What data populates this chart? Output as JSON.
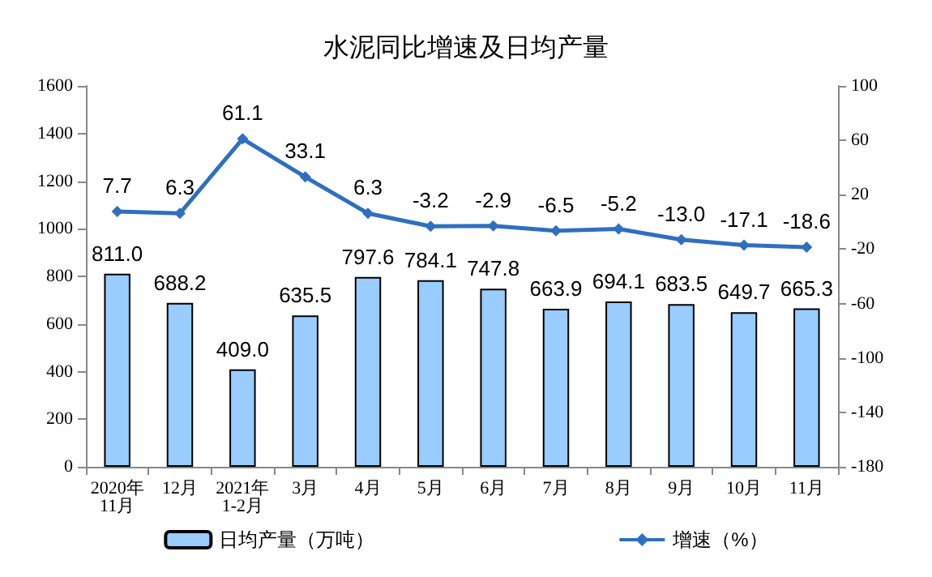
{
  "chart_data": {
    "type": "bar",
    "title": "水泥同比增速及日均产量",
    "categories": [
      "2020年\n11月",
      "12月",
      "2021年\n1-2月",
      "3月",
      "4月",
      "5月",
      "6月",
      "7月",
      "8月",
      "9月",
      "10月",
      "11月"
    ],
    "series": [
      {
        "name": "日均产量（万吨）",
        "color": "#99ccff",
        "values": [
          811.0,
          688.2,
          409.0,
          635.5,
          797.6,
          784.1,
          747.8,
          663.9,
          694.1,
          683.5,
          649.7,
          665.3
        ],
        "value_labels": [
          "811.0",
          "688.2",
          "409.0",
          "635.5",
          "797.6",
          "784.1",
          "747.8",
          "663.9",
          "694.1",
          "683.5",
          "649.7",
          "665.3"
        ]
      },
      {
        "name": "增速（%）",
        "type": "line",
        "axis": "y2",
        "color": "#2e6fc0",
        "marker": "diamond",
        "values": [
          7.7,
          6.3,
          61.1,
          33.1,
          6.3,
          -3.2,
          -2.9,
          -6.5,
          -5.2,
          -13.0,
          -17.1,
          -18.6
        ],
        "value_labels": [
          "7.7",
          "6.3",
          "61.1",
          "33.1",
          "6.3",
          "-3.2",
          "-2.9",
          "-6.5",
          "-5.2",
          "-13.0",
          "-17.1",
          "-18.6"
        ]
      }
    ],
    "ylim": [
      0,
      1600
    ],
    "yticks": [
      0,
      200,
      400,
      600,
      800,
      1000,
      1200,
      1400,
      1600
    ],
    "y2lim": [
      -180,
      100
    ],
    "y2ticks": [
      -180,
      -140,
      -100,
      -60,
      -20,
      20,
      60,
      100
    ],
    "grid": false,
    "legend": "bottom"
  }
}
